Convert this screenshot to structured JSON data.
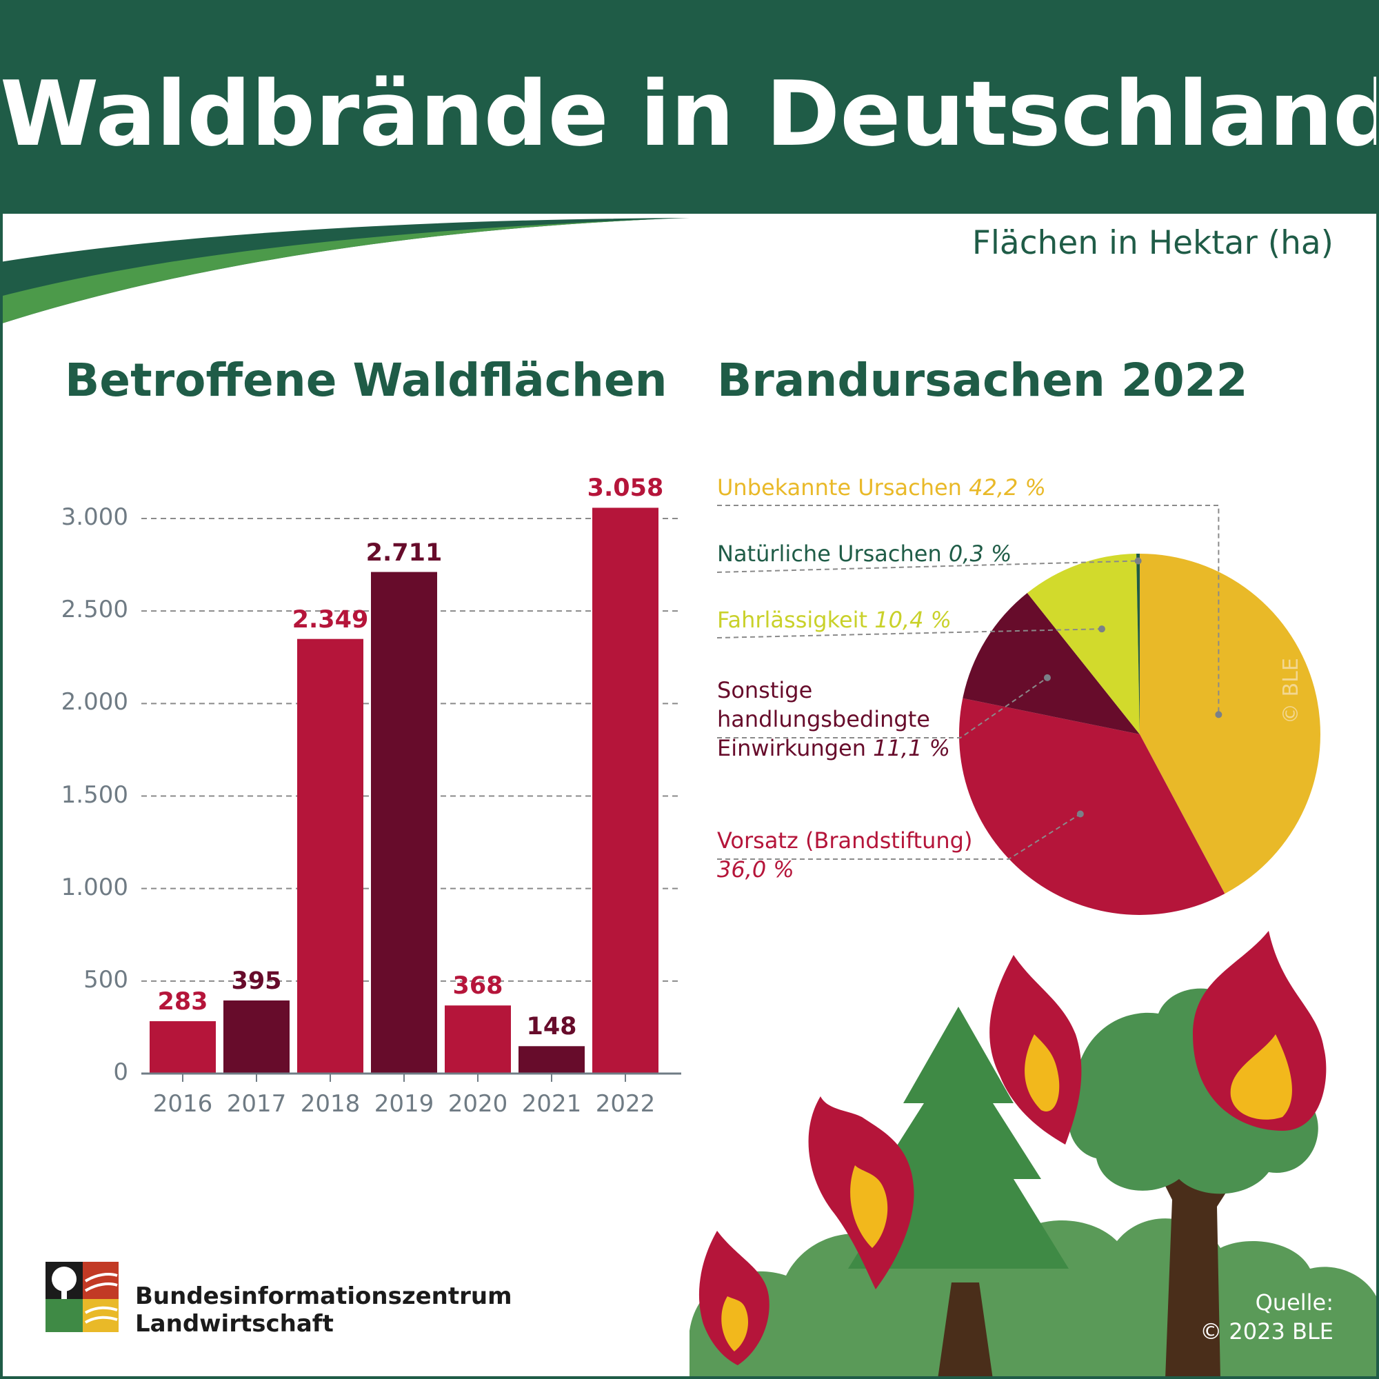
{
  "title": "Waldbrände in Deutschland",
  "units_note": "Flächen in Hektar (ha)",
  "bar_section_title": "Betroffene Waldflächen",
  "pie_section_title": "Brandursachen 2022",
  "watermark": "© BLE",
  "logo": {
    "line1": "Bundesinformationszentrum",
    "line2": "Landwirtschaft",
    "icon": "tree-landscape-logo-icon"
  },
  "source": {
    "line1": "Quelle:",
    "line2": "© 2023 BLE"
  },
  "colors": {
    "header_green": "#1f5c47",
    "swoosh_green": "#4c9a4a",
    "bar_red": "#b5153a",
    "bar_dark": "#670c2b",
    "yellow": "#e9b928",
    "lime": "#d2da2c",
    "grid": "#8a8a8a"
  },
  "chart_data": [
    {
      "type": "bar",
      "title": "Betroffene Waldflächen",
      "categories": [
        "2016",
        "2017",
        "2018",
        "2019",
        "2020",
        "2021",
        "2022"
      ],
      "values": [
        283,
        395,
        2349,
        2711,
        368,
        148,
        3058
      ],
      "value_labels": [
        "283",
        "395",
        "2.349",
        "2.711",
        "368",
        "148",
        "3.058"
      ],
      "bar_colors": [
        "#b5153a",
        "#670c2b",
        "#b5153a",
        "#670c2b",
        "#b5153a",
        "#670c2b",
        "#b5153a"
      ],
      "yticks": [
        0,
        500,
        1000,
        1500,
        2000,
        2500,
        3000
      ],
      "ytick_labels": [
        "0",
        "500",
        "1.000",
        "1.500",
        "2.000",
        "2.500",
        "3.000"
      ],
      "ylim": [
        0,
        3000
      ],
      "grid": true,
      "xlabel": "",
      "ylabel": ""
    },
    {
      "type": "pie",
      "title": "Brandursachen 2022",
      "slices": [
        {
          "label": "Unbekannte Ursachen",
          "pct_text": "42,2 %",
          "value": 42.2,
          "color": "#e9b928",
          "text_color": "#e9b928"
        },
        {
          "label": "Vorsatz (Brandstiftung)",
          "pct_text": "36,0 %",
          "value": 36.0,
          "color": "#b5153a",
          "text_color": "#b5153a"
        },
        {
          "label": "Sonstige handlungsbedingte Einwirkungen",
          "label_lines": [
            "Sonstige",
            "handlungsbedingte",
            "Einwirkungen"
          ],
          "pct_text": "11,1 %",
          "value": 11.1,
          "color": "#670c2b",
          "text_color": "#670c2b"
        },
        {
          "label": "Fahrlässigkeit",
          "pct_text": "10,4 %",
          "value": 10.4,
          "color": "#d2da2c",
          "text_color": "#c9d12a"
        },
        {
          "label": "Natürliche Ursachen",
          "pct_text": "0,3 %",
          "value": 0.3,
          "color": "#1f5c47",
          "text_color": "#1f5c47"
        }
      ]
    }
  ]
}
